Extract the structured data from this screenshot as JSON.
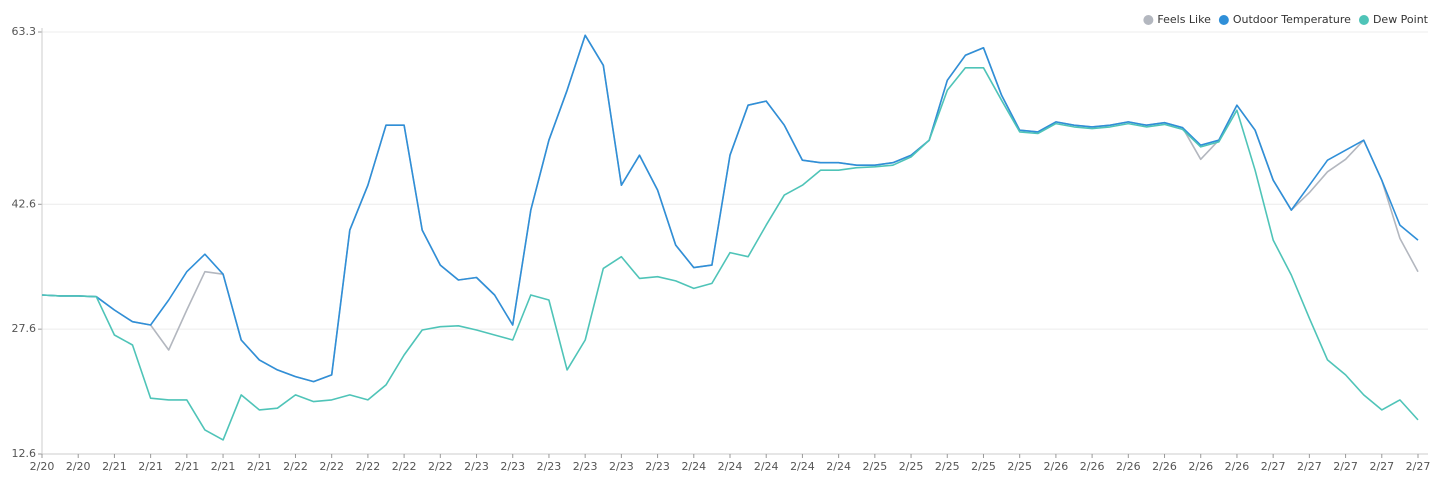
{
  "chart_data": {
    "type": "line",
    "categories": [
      "2/20",
      null,
      "2/20",
      null,
      "2/21",
      null,
      "2/21",
      null,
      "2/21",
      null,
      "2/21",
      null,
      "2/21",
      null,
      "2/22",
      null,
      "2/22",
      null,
      "2/22",
      null,
      "2/22",
      null,
      "2/22",
      null,
      "2/23",
      null,
      "2/23",
      null,
      "2/23",
      null,
      "2/23",
      null,
      "2/23",
      null,
      "2/23",
      null,
      "2/24",
      null,
      "2/24",
      null,
      "2/24",
      null,
      "2/24",
      null,
      "2/24",
      null,
      "2/25",
      null,
      "2/25",
      null,
      "2/25",
      null,
      "2/25",
      null,
      "2/25",
      null,
      "2/26",
      null,
      "2/26",
      null,
      "2/26",
      null,
      "2/26",
      null,
      "2/26",
      null,
      "2/26",
      null,
      "2/27",
      null,
      "2/27",
      null,
      "2/27",
      null,
      "2/27",
      null,
      "2/27"
    ],
    "series": [
      {
        "name": "Feels Like",
        "color": "#b3b7bf",
        "values": [
          31.7,
          31.6,
          31.6,
          31.5,
          29.9,
          28.5,
          28.1,
          25.1,
          29.9,
          34.5,
          34.2,
          26.3,
          23.9,
          22.7,
          21.9,
          21.3,
          22.1,
          39.5,
          44.9,
          52.1,
          52.1,
          39.5,
          35.3,
          33.5,
          33.8,
          31.7,
          28.1,
          41.9,
          50.3,
          56.3,
          62.9,
          59.3,
          44.9,
          48.5,
          44.3,
          37.7,
          35.0,
          35.3,
          48.5,
          54.5,
          55.0,
          52.1,
          47.9,
          47.6,
          47.6,
          47.3,
          47.3,
          47.6,
          48.5,
          50.3,
          57.5,
          60.5,
          61.4,
          55.7,
          51.5,
          51.3,
          52.5,
          52.1,
          51.9,
          52.1,
          52.5,
          52.1,
          52.4,
          51.8,
          48.0,
          50.3,
          54.5,
          51.5,
          45.5,
          41.9,
          44.0,
          46.5,
          48.0,
          50.3,
          45.5,
          38.5,
          34.5
        ]
      },
      {
        "name": "Outdoor Temperature",
        "color": "#2f8fd8",
        "values": [
          31.7,
          31.6,
          31.6,
          31.5,
          29.9,
          28.5,
          28.1,
          31.1,
          34.5,
          36.6,
          34.2,
          26.3,
          23.9,
          22.7,
          21.9,
          21.3,
          22.1,
          39.5,
          44.9,
          52.1,
          52.1,
          39.5,
          35.3,
          33.5,
          33.8,
          31.7,
          28.1,
          41.9,
          50.3,
          56.3,
          62.9,
          59.3,
          44.9,
          48.5,
          44.3,
          37.7,
          35.0,
          35.3,
          48.5,
          54.5,
          55.0,
          52.1,
          47.9,
          47.6,
          47.6,
          47.3,
          47.3,
          47.6,
          48.5,
          50.3,
          57.5,
          60.5,
          61.4,
          55.7,
          51.5,
          51.3,
          52.5,
          52.1,
          51.9,
          52.1,
          52.5,
          52.1,
          52.4,
          51.8,
          49.7,
          50.3,
          54.5,
          51.5,
          45.5,
          41.9,
          44.9,
          47.9,
          49.1,
          50.3,
          45.5,
          40.1,
          38.3
        ]
      },
      {
        "name": "Dew Point",
        "color": "#4fc4b8",
        "values": [
          31.7,
          31.6,
          31.6,
          31.5,
          26.9,
          25.7,
          19.3,
          19.1,
          19.1,
          15.5,
          14.3,
          19.7,
          17.9,
          18.1,
          19.7,
          18.9,
          19.1,
          19.7,
          19.1,
          20.9,
          24.5,
          27.5,
          27.9,
          28.0,
          27.5,
          26.9,
          26.3,
          31.7,
          31.1,
          22.7,
          26.3,
          34.9,
          36.3,
          33.7,
          33.9,
          33.4,
          32.5,
          33.1,
          36.8,
          36.3,
          40.1,
          43.7,
          44.9,
          46.7,
          46.7,
          47.0,
          47.1,
          47.3,
          48.3,
          50.3,
          56.3,
          59.0,
          59.0,
          55.1,
          51.3,
          51.1,
          52.3,
          51.9,
          51.7,
          51.9,
          52.3,
          51.9,
          52.2,
          51.6,
          49.5,
          50.1,
          53.9,
          46.7,
          38.3,
          34.1,
          28.9,
          23.9,
          22.1,
          19.7,
          17.9,
          19.1,
          16.7
        ]
      }
    ],
    "ylim": [
      12.6,
      63.3
    ],
    "yticks": [
      12.6,
      27.6,
      42.6,
      63.3
    ],
    "grid": true,
    "legend": "top-right"
  }
}
